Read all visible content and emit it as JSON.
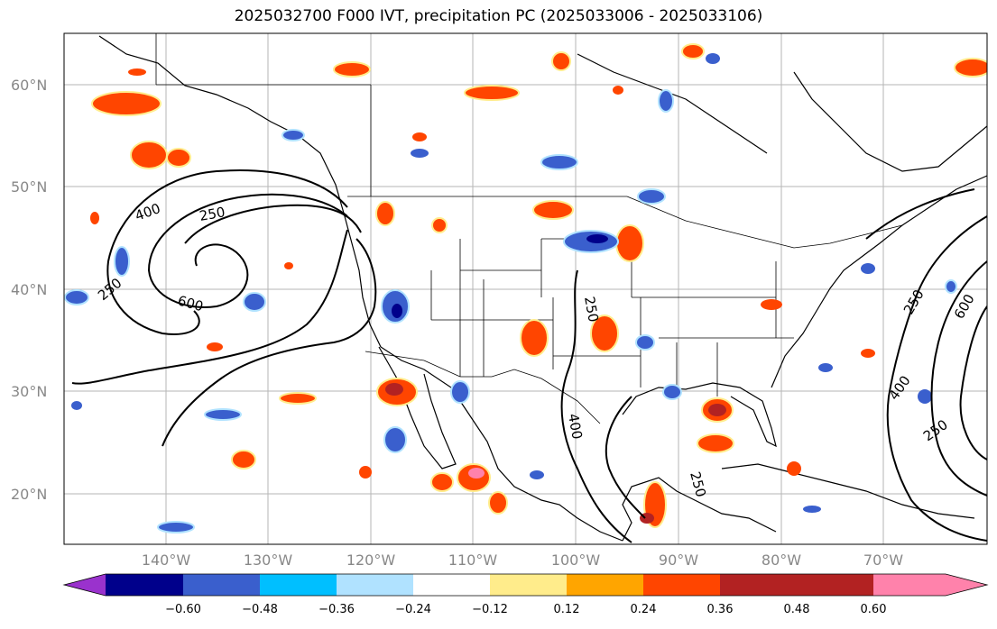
{
  "title": "2025032700 F000 IVT, precipitation PC (2025033006 - 2025033106)",
  "latitude_labels": [
    "60°N",
    "50°N",
    "40°N",
    "30°N",
    "20°N"
  ],
  "longitude_labels": [
    "140°W",
    "130°W",
    "120°W",
    "110°W",
    "100°W",
    "90°W",
    "80°W",
    "70°W"
  ],
  "colorbar": {
    "tick_labels": [
      "−0.60",
      "−0.48",
      "−0.36",
      "−0.24",
      "−0.12",
      "0.12",
      "0.24",
      "0.36",
      "0.48",
      "0.60"
    ],
    "colors": [
      "#9a32cd",
      "#00008b",
      "#3a5fcd",
      "#00bfff",
      "#b0e2ff",
      "#ffffff",
      "#ffec8b",
      "#ffa500",
      "#ff4500",
      "#b22222",
      "#ff82ab"
    ]
  },
  "ivt_contour_labels": [
    "400",
    "250",
    "250",
    "600",
    "250",
    "250",
    "600",
    "400",
    "400",
    "250",
    "250"
  ]
}
